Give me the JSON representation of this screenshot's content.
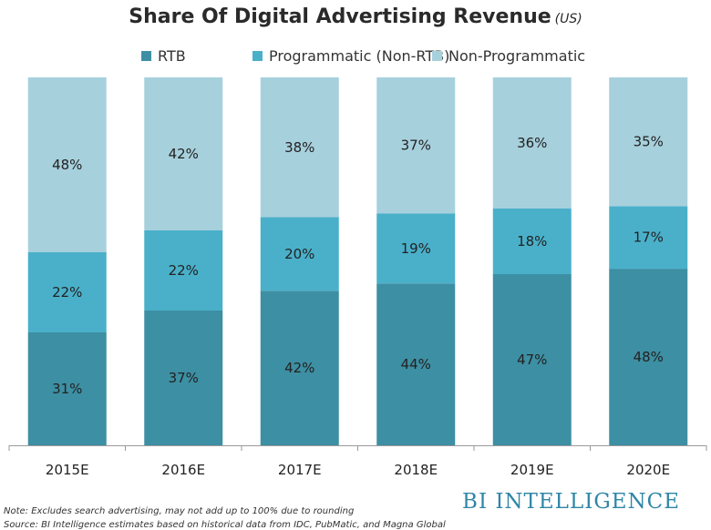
{
  "header": {
    "title": "Share Of Digital Advertising Revenue",
    "title_unit": "(US)"
  },
  "footer": {
    "note": "Note: Excludes search advertising, may not add up to 100% due to rounding",
    "source": "Source: BI Intelligence estimates based on historical data from IDC, PubMatic, and Magna Global",
    "brand": "BI INTELLIGENCE"
  },
  "chart_data": {
    "type": "bar",
    "stacked": true,
    "title": "Share Of Digital Advertising Revenue",
    "categories": [
      "2015E",
      "2016E",
      "2017E",
      "2018E",
      "2019E",
      "2020E"
    ],
    "series": [
      {
        "name": "RTB",
        "values": [
          31,
          37,
          42,
          44,
          47,
          48
        ],
        "color": "#3d8fa3"
      },
      {
        "name": "Programmatic (Non-RTB)",
        "values": [
          22,
          22,
          20,
          19,
          18,
          17
        ],
        "color": "#4ab0ca"
      },
      {
        "name": "Non-Programmatic",
        "values": [
          48,
          42,
          38,
          37,
          36,
          35
        ],
        "color": "#a7d0dd"
      }
    ],
    "value_suffix": "%",
    "legend_position": "top",
    "grid": false
  }
}
